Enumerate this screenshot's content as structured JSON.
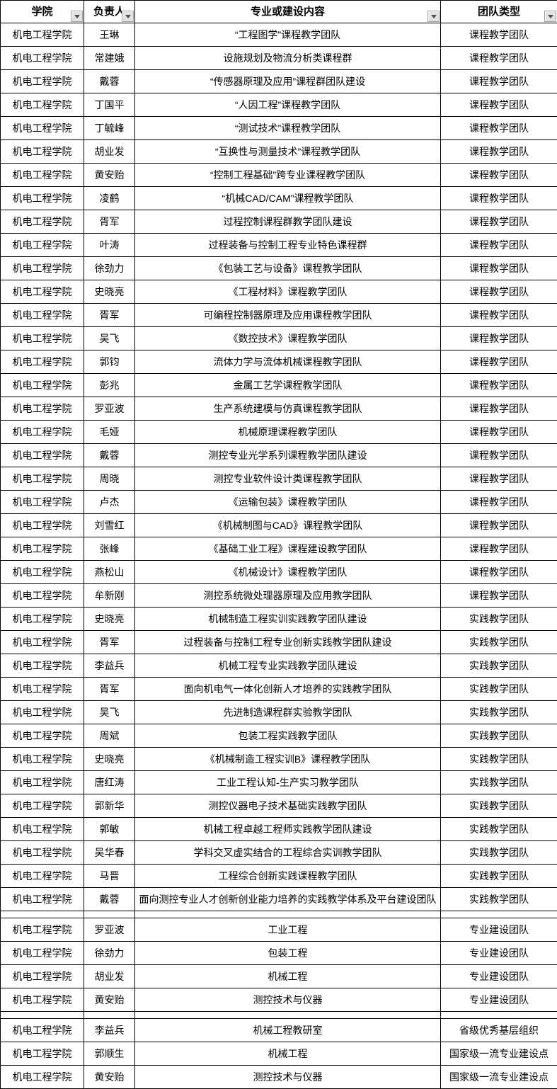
{
  "header": {
    "columns": [
      {
        "label": "学院"
      },
      {
        "label": "负责人"
      },
      {
        "label": "专业或建设内容"
      },
      {
        "label": "团队类型"
      }
    ]
  },
  "colors": {
    "grid_border": "#000000",
    "cell_background": "#ffffff",
    "text": "#000000",
    "filter_button_background": "#e3e3e3",
    "filter_button_border": "#a0a0a5",
    "filter_arrow": "#4c4c52"
  },
  "sections": [
    {
      "rows": [
        {
          "college": "机电工程学院",
          "leader": "王琳",
          "content": "“工程图学”课程教学团队",
          "type": "课程教学团队"
        },
        {
          "college": "机电工程学院",
          "leader": "常建娥",
          "content": "设施规划及物流分析类课程群",
          "type": "课程教学团队"
        },
        {
          "college": "机电工程学院",
          "leader": "戴蓉",
          "content": "“传感器原理及应用”课程群团队建设",
          "type": "课程教学团队"
        },
        {
          "college": "机电工程学院",
          "leader": "丁国平",
          "content": "“人因工程”课程教学团队",
          "type": "课程教学团队"
        },
        {
          "college": "机电工程学院",
          "leader": "丁毓峰",
          "content": "“测试技术”课程教学团队",
          "type": "课程教学团队"
        },
        {
          "college": "机电工程学院",
          "leader": "胡业发",
          "content": "“互换性与测量技术”课程教学团队",
          "type": "课程教学团队"
        },
        {
          "college": "机电工程学院",
          "leader": "黄安贻",
          "content": "“控制工程基础”跨专业课程教学团队",
          "type": "课程教学团队"
        },
        {
          "college": "机电工程学院",
          "leader": "凌鹤",
          "content": "“机械CAD/CAM”课程教学团队",
          "type": "课程教学团队"
        },
        {
          "college": "机电工程学院",
          "leader": "胥军",
          "content": "过程控制课程群教学团队建设",
          "type": "课程教学团队"
        },
        {
          "college": "机电工程学院",
          "leader": "叶涛",
          "content": "过程装备与控制工程专业特色课程群",
          "type": "课程教学团队"
        },
        {
          "college": "机电工程学院",
          "leader": "徐劲力",
          "content": "《包装工艺与设备》课程教学团队",
          "type": "课程教学团队"
        },
        {
          "college": "机电工程学院",
          "leader": "史晓亮",
          "content": "《工程材料》课程教学团队",
          "type": "课程教学团队"
        },
        {
          "college": "机电工程学院",
          "leader": "胥军",
          "content": "可编程控制器原理及应用课程教学团队",
          "type": "课程教学团队"
        },
        {
          "college": "机电工程学院",
          "leader": "吴飞",
          "content": "《数控技术》课程教学团队",
          "type": "课程教学团队"
        },
        {
          "college": "机电工程学院",
          "leader": "郭钧",
          "content": "流体力学与流体机械课程教学团队",
          "type": "课程教学团队"
        },
        {
          "college": "机电工程学院",
          "leader": "彭兆",
          "content": "金属工艺学课程教学团队",
          "type": "课程教学团队"
        },
        {
          "college": "机电工程学院",
          "leader": "罗亚波",
          "content": "生产系统建模与仿真课程教学团队",
          "type": "课程教学团队"
        },
        {
          "college": "机电工程学院",
          "leader": "毛娅",
          "content": "机械原理课程教学团队",
          "type": "课程教学团队"
        },
        {
          "college": "机电工程学院",
          "leader": "戴蓉",
          "content": "测控专业光学系列课程教学团队建设",
          "type": "课程教学团队"
        },
        {
          "college": "机电工程学院",
          "leader": "周晓",
          "content": "测控专业软件设计类课程教学团队",
          "type": "课程教学团队"
        },
        {
          "college": "机电工程学院",
          "leader": "卢杰",
          "content": "《运输包装》课程教学团队",
          "type": "课程教学团队"
        },
        {
          "college": "机电工程学院",
          "leader": "刘雪红",
          "content": "《机械制图与CAD》课程教学团队",
          "type": "课程教学团队"
        },
        {
          "college": "机电工程学院",
          "leader": "张峰",
          "content": "《基础工业工程》课程建设教学团队",
          "type": "课程教学团队"
        },
        {
          "college": "机电工程学院",
          "leader": "燕松山",
          "content": "《机械设计》课程教学团队",
          "type": "课程教学团队"
        },
        {
          "college": "机电工程学院",
          "leader": "牟新刚",
          "content": "测控系统微处理器原理及应用教学团队",
          "type": "课程教学团队"
        },
        {
          "college": "机电工程学院",
          "leader": "史晓亮",
          "content": "机械制造工程实训实践教学团队建设",
          "type": "实践教学团队"
        },
        {
          "college": "机电工程学院",
          "leader": "胥军",
          "content": "过程装备与控制工程专业创新实践教学团队建设",
          "type": "实践教学团队"
        },
        {
          "college": "机电工程学院",
          "leader": "李益兵",
          "content": "机械工程专业实践教学团队建设",
          "type": "实践教学团队"
        },
        {
          "college": "机电工程学院",
          "leader": "胥军",
          "content": "面向机电气一体化创新人才培养的实践教学团队",
          "type": "实践教学团队"
        },
        {
          "college": "机电工程学院",
          "leader": "吴飞",
          "content": "先进制造课程群实验教学团队",
          "type": "实践教学团队"
        },
        {
          "college": "机电工程学院",
          "leader": "周斌",
          "content": "包装工程实践教学团队",
          "type": "实践教学团队"
        },
        {
          "college": "机电工程学院",
          "leader": "史晓亮",
          "content": "《机械制造工程实训B》课程教学团队",
          "type": "实践教学团队"
        },
        {
          "college": "机电工程学院",
          "leader": "唐红涛",
          "content": "工业工程认知-生产实习教学团队",
          "type": "实践教学团队"
        },
        {
          "college": "机电工程学院",
          "leader": "郭新华",
          "content": "测控仪器电子技术基础实践教学团队",
          "type": "实践教学团队"
        },
        {
          "college": "机电工程学院",
          "leader": "郭敏",
          "content": "机械工程卓越工程师实践教学团队建设",
          "type": "实践教学团队"
        },
        {
          "college": "机电工程学院",
          "leader": "吴华春",
          "content": "学科交叉虚实结合的工程综合实训教学团队",
          "type": "实践教学团队"
        },
        {
          "college": "机电工程学院",
          "leader": "马晋",
          "content": "工程综合创新实践课程教学团队",
          "type": "实践教学团队"
        },
        {
          "college": "机电工程学院",
          "leader": "戴蓉",
          "content": "面向测控专业人才创新创业能力培养的实践教学体系及平台建设团队",
          "type": "实践教学团队"
        }
      ]
    },
    {
      "rows": [
        {
          "college": "机电工程学院",
          "leader": "罗亚波",
          "content": "工业工程",
          "type": "专业建设团队"
        },
        {
          "college": "机电工程学院",
          "leader": "徐劲力",
          "content": "包装工程",
          "type": "专业建设团队"
        },
        {
          "college": "机电工程学院",
          "leader": "胡业发",
          "content": "机械工程",
          "type": "专业建设团队"
        },
        {
          "college": "机电工程学院",
          "leader": "黄安贻",
          "content": "测控技术与仪器",
          "type": "专业建设团队"
        }
      ]
    },
    {
      "rows": [
        {
          "college": "机电工程学院",
          "leader": "李益兵",
          "content": "机械工程教研室",
          "type": "省级优秀基层组织"
        },
        {
          "college": "机电工程学院",
          "leader": "郭顺生",
          "content": "机械工程",
          "type": "国家级一流专业建设点"
        },
        {
          "college": "机电工程学院",
          "leader": "黄安贻",
          "content": "测控技术与仪器",
          "type": "国家级一流专业建设点"
        }
      ]
    }
  ]
}
